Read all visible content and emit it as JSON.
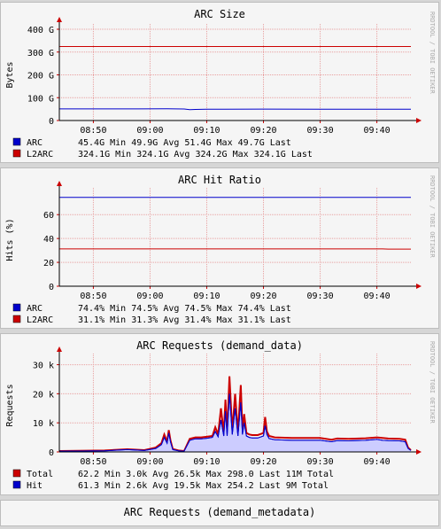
{
  "watermark": "RRDTOOL / TOBI OETIKER",
  "chart_data": [
    {
      "type": "line",
      "title": "ARC Size",
      "ylabel": "Bytes",
      "ylim": [
        0,
        400
      ],
      "yticks": [
        0,
        100,
        200,
        300,
        400
      ],
      "ytick_labels": [
        "0",
        "100 G",
        "200 G",
        "300 G",
        "400 G"
      ],
      "xlim": [
        "08:44",
        "09:46"
      ],
      "xticks": [
        "08:50",
        "09:00",
        "09:10",
        "09:20",
        "09:30",
        "09:40"
      ],
      "grid": true,
      "legend_placement": "bottom",
      "series": [
        {
          "name": "ARC",
          "color": "#0000cc",
          "line_width": 1,
          "x": [
            "08:44",
            "08:58",
            "09:03",
            "09:06",
            "09:07",
            "09:08",
            "09:10",
            "09:20",
            "09:30",
            "09:40",
            "09:46"
          ],
          "y": [
            51.0,
            51.0,
            51.4,
            50.5,
            47.5,
            48.5,
            49.5,
            50.0,
            49.8,
            49.7,
            49.7
          ],
          "stats": [
            "45.4G",
            "Min",
            "49.9G",
            "Avg",
            "51.4G",
            "Max",
            "49.7G",
            "Last"
          ]
        },
        {
          "name": "L2ARC",
          "color": "#cc0000",
          "line_width": 1,
          "x": [
            "08:44",
            "09:46"
          ],
          "y": [
            324.1,
            324.1
          ],
          "stats": [
            "324.1G",
            "Min",
            "324.1G",
            "Avg",
            "324.2G",
            "Max",
            "324.1G",
            "Last"
          ]
        }
      ]
    },
    {
      "type": "line",
      "title": "ARC Hit Ratio",
      "ylabel": "Hits (%)",
      "ylim": [
        0,
        78
      ],
      "yticks": [
        0,
        20,
        40,
        60
      ],
      "ytick_labels": [
        "0",
        "20",
        "40",
        "60"
      ],
      "xlim": [
        "08:44",
        "09:46"
      ],
      "xticks": [
        "08:50",
        "09:00",
        "09:10",
        "09:20",
        "09:30",
        "09:40"
      ],
      "grid": true,
      "legend_placement": "bottom",
      "series": [
        {
          "name": "ARC",
          "color": "#0000cc",
          "line_width": 1,
          "x": [
            "08:44",
            "09:46"
          ],
          "y": [
            74.5,
            74.4
          ],
          "stats": [
            "74.4%",
            "Min",
            "74.5%",
            "Avg",
            "74.5%",
            "Max",
            "74.4%",
            "Last"
          ]
        },
        {
          "name": "L2ARC",
          "color": "#cc0000",
          "line_width": 1,
          "x": [
            "08:44",
            "09:41",
            "09:42",
            "09:46"
          ],
          "y": [
            31.3,
            31.3,
            31.1,
            31.1
          ],
          "stats": [
            "31.1%",
            "Min",
            "31.3%",
            "Avg",
            "31.4%",
            "Max",
            "31.1%",
            "Last"
          ]
        }
      ]
    },
    {
      "type": "area",
      "title": "ARC Requests (demand_data)",
      "ylabel": "Requests",
      "ylim": [
        0,
        32000
      ],
      "yticks": [
        0,
        10000,
        20000,
        30000
      ],
      "ytick_labels": [
        "0",
        "10 k",
        "20 k",
        "30 k"
      ],
      "xlim": [
        "08:44",
        "09:46"
      ],
      "xticks": [
        "08:50",
        "09:00",
        "09:10",
        "09:20",
        "09:30",
        "09:40"
      ],
      "grid": true,
      "legend_placement": "bottom",
      "series": [
        {
          "name": "Total",
          "color": "#cc0000",
          "fill": false,
          "line_width": 2,
          "x": [
            "08:44",
            "08:52",
            "08:56",
            "08:59",
            "09:01",
            "09:02",
            "09:02.5",
            "09:03",
            "09:03.3",
            "09:03.6",
            "09:04",
            "09:05",
            "09:06",
            "09:07",
            "09:08",
            "09:09",
            "09:10",
            "09:11",
            "09:11.5",
            "09:12",
            "09:12.5",
            "09:13",
            "09:13.3",
            "09:13.6",
            "09:14",
            "09:14.5",
            "09:15",
            "09:15.5",
            "09:16",
            "09:16.3",
            "09:16.6",
            "09:17",
            "09:17.5",
            "09:18",
            "09:19",
            "09:20",
            "09:20.3",
            "09:20.6",
            "09:21",
            "09:22",
            "09:25",
            "09:30",
            "09:32",
            "09:33",
            "09:35",
            "09:38",
            "09:40",
            "09:41",
            "09:42",
            "09:44",
            "09:45",
            "09:45.5",
            "09:46"
          ],
          "y": [
            300,
            500,
            900,
            600,
            1500,
            3000,
            6000,
            3500,
            7500,
            4000,
            1000,
            500,
            300,
            4500,
            5000,
            5000,
            5200,
            5500,
            8500,
            6000,
            15000,
            6500,
            18000,
            6500,
            26000,
            7000,
            20000,
            6500,
            23000,
            7000,
            13000,
            6500,
            6000,
            5800,
            5800,
            6500,
            12000,
            7000,
            5500,
            5000,
            4800,
            4800,
            4200,
            4600,
            4500,
            4700,
            5000,
            4800,
            4600,
            4500,
            4200,
            1500,
            600
          ],
          "stats": [
            "62.2",
            "Min",
            "3.0k",
            "Avg",
            "26.5k",
            "Max",
            "298.0",
            "Last",
            "11M",
            "Total"
          ]
        },
        {
          "name": "Hit",
          "color": "#0000cc",
          "fill": true,
          "fill_color": "#ccccff",
          "line_width": 1,
          "x": [
            "08:44",
            "08:52",
            "08:56",
            "08:59",
            "09:01",
            "09:02",
            "09:02.5",
            "09:03",
            "09:03.3",
            "09:03.6",
            "09:04",
            "09:05",
            "09:06",
            "09:07",
            "09:08",
            "09:09",
            "09:10",
            "09:11",
            "09:11.5",
            "09:12",
            "09:12.5",
            "09:13",
            "09:13.3",
            "09:13.6",
            "09:14",
            "09:14.5",
            "09:15",
            "09:15.5",
            "09:16",
            "09:16.3",
            "09:16.6",
            "09:17",
            "09:17.5",
            "09:18",
            "09:19",
            "09:20",
            "09:20.3",
            "09:20.6",
            "09:21",
            "09:22",
            "09:25",
            "09:30",
            "09:32",
            "09:33",
            "09:35",
            "09:38",
            "09:40",
            "09:41",
            "09:42",
            "09:44",
            "09:45",
            "09:45.5",
            "09:46"
          ],
          "y": [
            200,
            400,
            800,
            500,
            1200,
            2500,
            5000,
            3000,
            6500,
            3500,
            800,
            400,
            250,
            4000,
            4500,
            4500,
            4700,
            5000,
            7000,
            5200,
            11000,
            5500,
            14000,
            5500,
            20000,
            6000,
            15000,
            5500,
            17000,
            6000,
            10000,
            5500,
            5000,
            4800,
            4800,
            5500,
            9000,
            6000,
            4600,
            4200,
            4000,
            4000,
            3500,
            3900,
            3800,
            4000,
            4300,
            4000,
            3900,
            3800,
            3500,
            1200,
            500
          ],
          "stats": [
            "61.3",
            "Min",
            "2.6k",
            "Avg",
            "19.5k",
            "Max",
            "254.2",
            "Last",
            "9M",
            "Total"
          ]
        }
      ]
    },
    {
      "type": "line",
      "title": "ARC Requests (demand_metadata)",
      "partial": true
    }
  ]
}
